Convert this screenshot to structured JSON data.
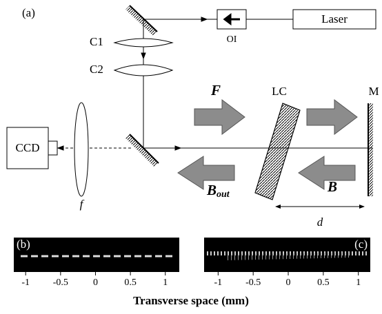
{
  "panel_a": {
    "label": "(a)",
    "laser": "Laser",
    "isolator": "OI",
    "lens_1": "C1",
    "lens_2": "C2",
    "liquid_crystal": "LC",
    "mirror": "M",
    "camera": "CCD",
    "lens_f": "f",
    "forward": "F",
    "backward": "B",
    "output_main": "B",
    "output_sub": "out",
    "distance": "d"
  },
  "panel_b": {
    "label": "(b)",
    "xlim": [
      -1.17,
      1.2
    ],
    "xticks": [
      -1,
      -0.5,
      0,
      0.5,
      1
    ]
  },
  "panel_c": {
    "label": "(c)",
    "xlim": [
      -1.2,
      1.17
    ],
    "xticks": [
      -1,
      -0.5,
      0,
      0.5,
      1
    ]
  },
  "x_axis_title": "Transverse space (mm)"
}
